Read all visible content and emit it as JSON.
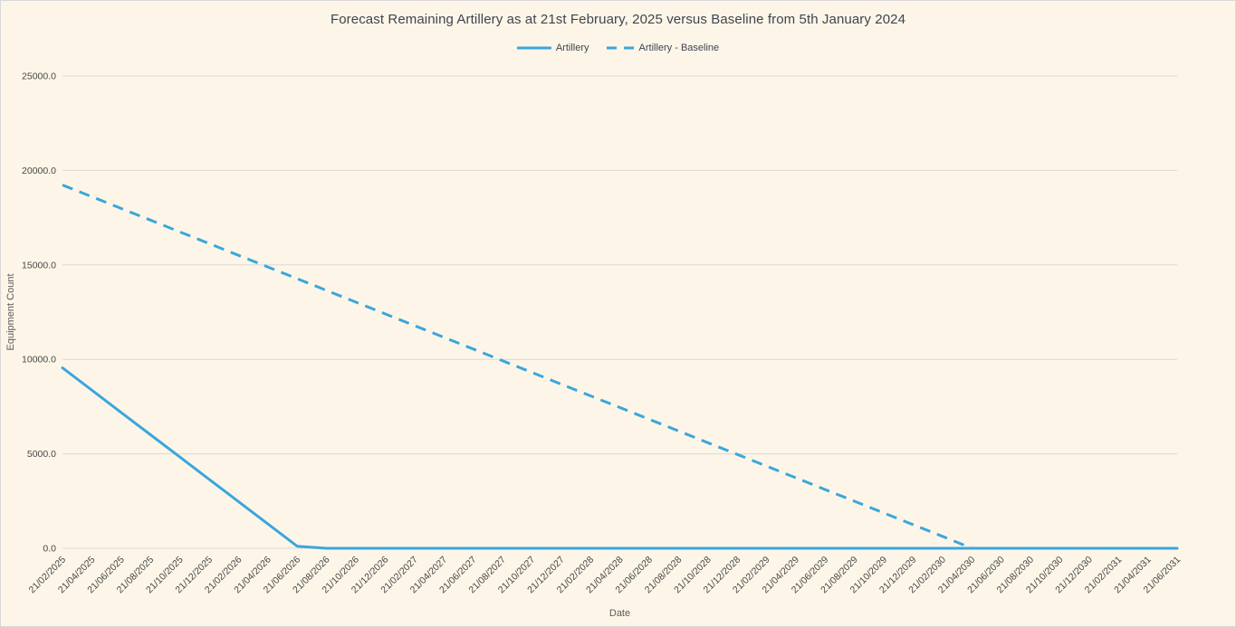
{
  "chart_data": {
    "type": "line",
    "title": "Forecast Remaining Artillery as at 21st February, 2025 versus Baseline from 5th January 2024",
    "xlabel": "Date",
    "ylabel": "Equipment Count",
    "ylim": [
      0,
      25000
    ],
    "ytick_step": 5000,
    "ytick_labels": [
      "0.0",
      "5000.0",
      "10000.0",
      "15000.0",
      "20000.0",
      "25000.0"
    ],
    "grid": "horizontal",
    "legend_position": "top-center",
    "categories": [
      "21/02/2025",
      "21/04/2025",
      "21/06/2025",
      "21/08/2025",
      "21/10/2025",
      "21/12/2025",
      "21/02/2026",
      "21/04/2026",
      "21/06/2026",
      "21/08/2026",
      "21/10/2026",
      "21/12/2026",
      "21/02/2027",
      "21/04/2027",
      "21/06/2027",
      "21/08/2027",
      "21/10/2027",
      "21/12/2027",
      "21/02/2028",
      "21/04/2028",
      "21/06/2028",
      "21/08/2028",
      "21/10/2028",
      "21/12/2028",
      "21/02/2029",
      "21/04/2029",
      "21/06/2029",
      "21/08/2029",
      "21/10/2029",
      "21/12/2029",
      "21/02/2030",
      "21/04/2030",
      "21/06/2030",
      "21/08/2030",
      "21/10/2030",
      "21/12/2030",
      "21/02/2031",
      "21/04/2031",
      "21/06/2031"
    ],
    "series": [
      {
        "name": "Artillery",
        "style": "solid",
        "trim_at_zero": false,
        "values": [
          9550,
          8370,
          7190,
          6010,
          4830,
          3650,
          2470,
          1290,
          110,
          0,
          0,
          0,
          0,
          0,
          0,
          0,
          0,
          0,
          0,
          0,
          0,
          0,
          0,
          0,
          0,
          0,
          0,
          0,
          0,
          0,
          0,
          0,
          0,
          0,
          0,
          0,
          0,
          0,
          0
        ]
      },
      {
        "name": "Artillery - Baseline",
        "style": "dashed",
        "trim_at_zero": true,
        "values": [
          19230,
          18610,
          17990,
          17370,
          16750,
          16130,
          15510,
          14890,
          14270,
          13650,
          13030,
          12410,
          11790,
          11170,
          10550,
          9930,
          9310,
          8690,
          8070,
          7450,
          6830,
          6210,
          5590,
          4970,
          4350,
          3730,
          3110,
          2490,
          1870,
          1250,
          630,
          0,
          0,
          0,
          0,
          0,
          0,
          0,
          0
        ]
      }
    ]
  },
  "colors": {
    "series_blue": "#3BA6DC",
    "background": "#FDF6E8",
    "grid": "#D9D9D9",
    "title_text": "#3F4450",
    "axis_text": "#474747",
    "axis_title_text": "#5A5A5A",
    "border": "#D9D9D9"
  }
}
